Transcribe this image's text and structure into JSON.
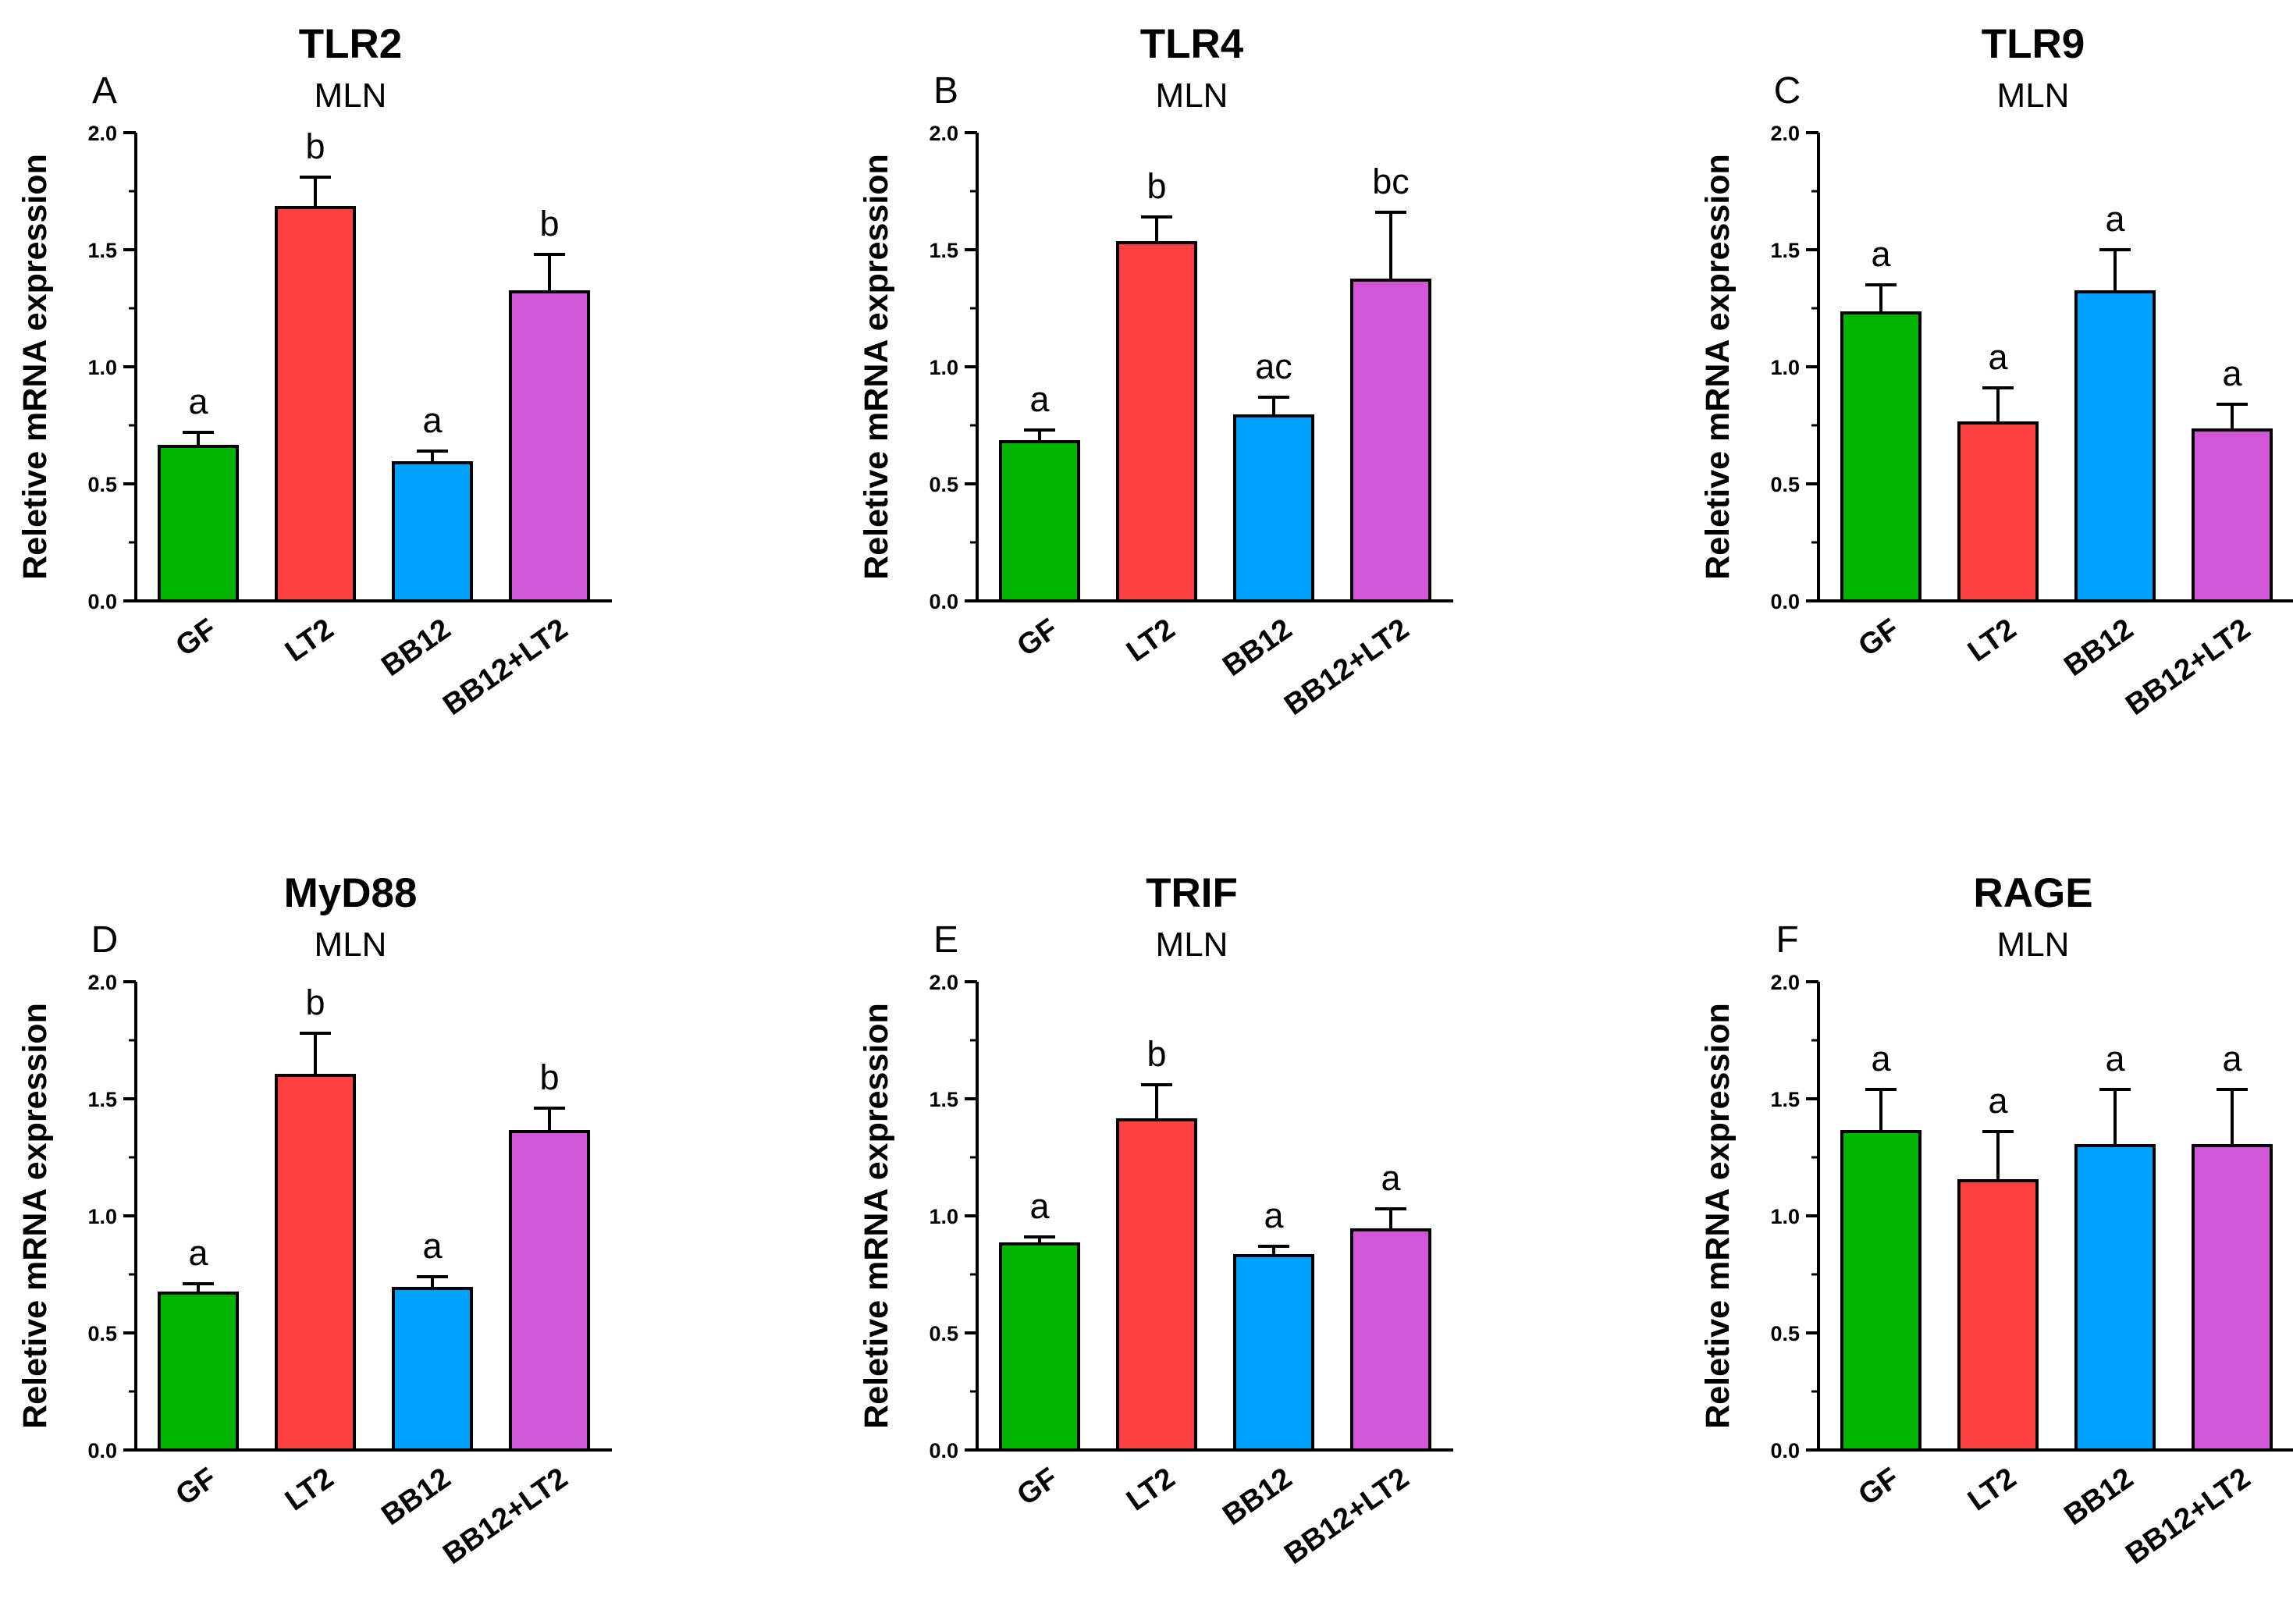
{
  "figure": {
    "colors": {
      "GF": "#00b400",
      "LT2": "#ff4040",
      "BB12": "#00a2ff",
      "BB12+LT2": "#d156d8",
      "axis": "#000000"
    }
  },
  "chart_data": [
    {
      "type": "bar",
      "panel": "A",
      "title": "TLR2",
      "subtitle": "MLN",
      "xlabel": "",
      "ylabel": "Reletive mRNA expression",
      "ylim": [
        0,
        2.0
      ],
      "yticks": [
        "0.0",
        "0.5",
        "1.0",
        "1.5",
        "2.0"
      ],
      "categories": [
        "GF",
        "LT2",
        "BB12",
        "BB12+LT2"
      ],
      "values": [
        0.66,
        1.68,
        0.59,
        1.32
      ],
      "errors": [
        0.06,
        0.13,
        0.05,
        0.16
      ],
      "significance": [
        "a",
        "b",
        "a",
        "b"
      ]
    },
    {
      "type": "bar",
      "panel": "B",
      "title": "TLR4",
      "subtitle": "MLN",
      "xlabel": "",
      "ylabel": "Reletive mRNA expression",
      "ylim": [
        0,
        2.0
      ],
      "yticks": [
        "0.0",
        "0.5",
        "1.0",
        "1.5",
        "2.0"
      ],
      "categories": [
        "GF",
        "LT2",
        "BB12",
        "BB12+LT2"
      ],
      "values": [
        0.68,
        1.53,
        0.79,
        1.37
      ],
      "errors": [
        0.05,
        0.11,
        0.08,
        0.29
      ],
      "significance": [
        "a",
        "b",
        "ac",
        "bc"
      ]
    },
    {
      "type": "bar",
      "panel": "C",
      "title": "TLR9",
      "subtitle": "MLN",
      "xlabel": "",
      "ylabel": "Reletive mRNA expression",
      "ylim": [
        0,
        2.0
      ],
      "yticks": [
        "0.0",
        "0.5",
        "1.0",
        "1.5",
        "2.0"
      ],
      "categories": [
        "GF",
        "LT2",
        "BB12",
        "BB12+LT2"
      ],
      "values": [
        1.23,
        0.76,
        1.32,
        0.73
      ],
      "errors": [
        0.12,
        0.15,
        0.18,
        0.11
      ],
      "significance": [
        "a",
        "a",
        "a",
        "a"
      ]
    },
    {
      "type": "bar",
      "panel": "D",
      "title": "MyD88",
      "subtitle": "MLN",
      "xlabel": "",
      "ylabel": "Reletive mRNA expression",
      "ylim": [
        0,
        2.0
      ],
      "yticks": [
        "0.0",
        "0.5",
        "1.0",
        "1.5",
        "2.0"
      ],
      "categories": [
        "GF",
        "LT2",
        "BB12",
        "BB12+LT2"
      ],
      "values": [
        0.67,
        1.6,
        0.69,
        1.36
      ],
      "errors": [
        0.04,
        0.18,
        0.05,
        0.1
      ],
      "significance": [
        "a",
        "b",
        "a",
        "b"
      ]
    },
    {
      "type": "bar",
      "panel": "E",
      "title": "TRIF",
      "subtitle": "MLN",
      "xlabel": "",
      "ylabel": "Reletive mRNA expression",
      "ylim": [
        0,
        2.0
      ],
      "yticks": [
        "0.0",
        "0.5",
        "1.0",
        "1.5",
        "2.0"
      ],
      "categories": [
        "GF",
        "LT2",
        "BB12",
        "BB12+LT2"
      ],
      "values": [
        0.88,
        1.41,
        0.83,
        0.94
      ],
      "errors": [
        0.03,
        0.15,
        0.04,
        0.09
      ],
      "significance": [
        "a",
        "b",
        "a",
        "a"
      ]
    },
    {
      "type": "bar",
      "panel": "F",
      "title": "RAGE",
      "subtitle": "MLN",
      "xlabel": "",
      "ylabel": "Reletive mRNA expression",
      "ylim": [
        0,
        2.0
      ],
      "yticks": [
        "0.0",
        "0.5",
        "1.0",
        "1.5",
        "2.0"
      ],
      "categories": [
        "GF",
        "LT2",
        "BB12",
        "BB12+LT2"
      ],
      "values": [
        1.36,
        1.15,
        1.3,
        1.3
      ],
      "errors": [
        0.18,
        0.21,
        0.24,
        0.24
      ],
      "significance": [
        "a",
        "a",
        "a",
        "a"
      ]
    }
  ]
}
